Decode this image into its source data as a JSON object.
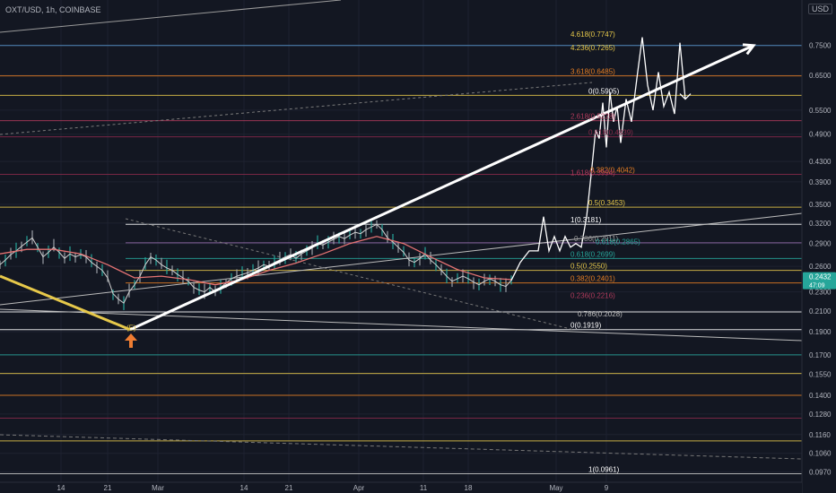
{
  "header": {
    "symbol": "OXT/USD, 1h, COINBASE",
    "currency": "USD"
  },
  "colors": {
    "background": "#131722",
    "price_line": "#d0d0d0",
    "ma": "#e57373",
    "projection": "#ffffff",
    "trend_yellow": "#e6c84a",
    "marker": "#ef7d32",
    "badge": "#26a69a"
  },
  "current_price": {
    "value": "0.2432",
    "sub": "47:09"
  },
  "chart_data": {
    "type": "line",
    "title": "",
    "xlabel": "",
    "ylabel": "",
    "yscale": "log",
    "ylim": [
      0.0955,
      0.82
    ],
    "y_ticks": [
      "0.7500",
      "0.6500",
      "0.5500",
      "0.4900",
      "0.4300",
      "0.3900",
      "0.3500",
      "0.3200",
      "0.2900",
      "0.2600",
      "0.2300",
      "0.2100",
      "0.1900",
      "0.1700",
      "0.1550",
      "0.1400",
      "0.1280",
      "0.1160",
      "0.1060",
      "0.0970"
    ],
    "x_ticks": [
      "14",
      "21",
      "Mar",
      "14",
      "21",
      "Apr",
      "11",
      "18",
      "May",
      "9"
    ],
    "series": [
      {
        "key": "price",
        "x": [
          0,
          6,
          12,
          18,
          24,
          30,
          36,
          42,
          48,
          54,
          60,
          66,
          72,
          78,
          84,
          90,
          96,
          102,
          108,
          114,
          120,
          126,
          132,
          138,
          144,
          150,
          156,
          162,
          168,
          174,
          180,
          186,
          192,
          198,
          204,
          210,
          216,
          222,
          228,
          234,
          240,
          246,
          252,
          258,
          264,
          270,
          276,
          282,
          288,
          294,
          300,
          306,
          312,
          318,
          324,
          330,
          336,
          342,
          348,
          354,
          360,
          366,
          372,
          378,
          384,
          390,
          396,
          402,
          408,
          414,
          420,
          426,
          432,
          438,
          444,
          450,
          456,
          462,
          468,
          474,
          480,
          486,
          492,
          498,
          504,
          510,
          516,
          522,
          528,
          534,
          540,
          546,
          552,
          558,
          564,
          570
        ],
        "y": [
          0.262,
          0.268,
          0.275,
          0.28,
          0.286,
          0.292,
          0.298,
          0.285,
          0.272,
          0.278,
          0.285,
          0.278,
          0.27,
          0.276,
          0.272,
          0.275,
          0.272,
          0.265,
          0.26,
          0.255,
          0.246,
          0.228,
          0.222,
          0.218,
          0.23,
          0.238,
          0.248,
          0.262,
          0.272,
          0.268,
          0.262,
          0.258,
          0.255,
          0.25,
          0.246,
          0.242,
          0.235,
          0.232,
          0.23,
          0.235,
          0.23,
          0.235,
          0.24,
          0.245,
          0.248,
          0.25,
          0.252,
          0.255,
          0.258,
          0.262,
          0.26,
          0.265,
          0.268,
          0.272,
          0.275,
          0.27,
          0.276,
          0.28,
          0.284,
          0.29,
          0.288,
          0.292,
          0.296,
          0.3,
          0.297,
          0.302,
          0.306,
          0.304,
          0.31,
          0.314,
          0.318,
          0.31,
          0.298,
          0.292,
          0.285,
          0.278,
          0.268,
          0.265,
          0.27,
          0.276,
          0.268,
          0.262,
          0.255,
          0.248,
          0.242,
          0.245,
          0.248,
          0.245,
          0.241,
          0.238,
          0.242,
          0.245,
          0.242,
          0.238,
          0.236,
          0.2432
        ]
      },
      {
        "key": "moving_average",
        "x": [
          0,
          30,
          60,
          90,
          120,
          150,
          180,
          210,
          240,
          270,
          300,
          330,
          360,
          390,
          420,
          450,
          480,
          510,
          540,
          570
        ],
        "y": [
          0.276,
          0.282,
          0.282,
          0.276,
          0.262,
          0.246,
          0.248,
          0.244,
          0.238,
          0.244,
          0.255,
          0.264,
          0.276,
          0.29,
          0.3,
          0.29,
          0.272,
          0.256,
          0.246,
          0.244
        ]
      },
      {
        "key": "projection",
        "x": [
          570,
          580,
          590,
          600,
          606,
          612,
          618,
          624,
          630,
          636,
          642,
          648,
          654,
          660,
          664,
          668,
          672,
          676,
          680,
          684,
          688,
          692,
          698,
          704,
          710,
          716,
          722,
          728,
          734,
          740,
          746,
          752,
          758,
          764
        ],
        "y": [
          0.243,
          0.265,
          0.28,
          0.28,
          0.33,
          0.28,
          0.3,
          0.28,
          0.3,
          0.285,
          0.29,
          0.285,
          0.33,
          0.42,
          0.5,
          0.48,
          0.57,
          0.46,
          0.6,
          0.52,
          0.56,
          0.47,
          0.58,
          0.52,
          0.64,
          0.78,
          0.62,
          0.55,
          0.66,
          0.56,
          0.6,
          0.54,
          0.76,
          0.58
        ]
      }
    ],
    "fib_upper": {
      "labels": [
        "4.618(0.7747)",
        "4.236(0.7265)",
        "3.618(0.6485)",
        "0(0.5905)",
        "2.618(0.5228)",
        "0.618(0.4839)",
        "0.382(0.4042)",
        "1.618(0.3994)",
        "0.5(0.3453)",
        "1(0.3181)"
      ],
      "prices": [
        0.7747,
        0.7265,
        0.6485,
        0.5905,
        0.5228,
        0.4839,
        0.4042,
        0.3994,
        0.3453,
        0.3181
      ]
    },
    "fib_lower": {
      "labels": [
        "0.786(0.2911)",
        "0.618(0.2865)",
        "0.618(0.2699)",
        "0.5(0.2550)",
        "0.382(0.2401)",
        "0.236(0.2216)",
        "0.786(0.2028)",
        "0(0.1919)"
      ],
      "prices": [
        0.2911,
        0.2865,
        0.2699,
        0.255,
        0.2401,
        0.2216,
        0.2028,
        0.1919
      ]
    },
    "fib_bottom": {
      "label": "1(0.0961)",
      "price": 0.0961
    },
    "horizontal_levels": [
      0.75,
      0.6485,
      0.5905,
      0.5228,
      0.4839,
      0.4042,
      0.3453,
      0.3181,
      0.2911,
      0.2699,
      0.255,
      0.2401,
      0.2089,
      0.1919,
      0.17,
      0.1555,
      0.14,
      0.1255,
      0.1125,
      0.0961
    ],
    "trendline": {
      "from": [
        145,
        0.1919
      ],
      "to": [
        840,
        0.75
      ]
    },
    "swing_marker": "(E)"
  }
}
